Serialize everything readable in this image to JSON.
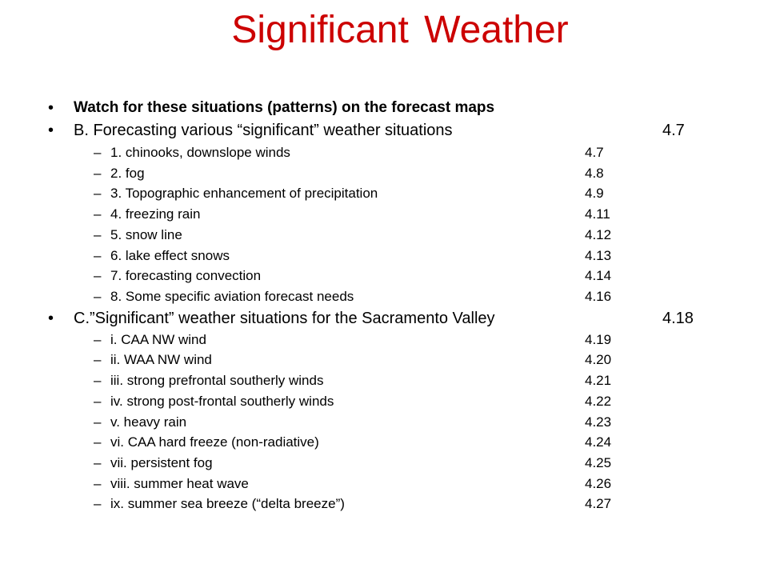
{
  "title": "Significant Weather",
  "bullet_char": "•",
  "dash_char": "–",
  "heading_watch": "Watch for these situations (patterns) on the forecast maps",
  "section_b": {
    "label": "B. Forecasting various “significant” weather situations",
    "page": "4.7",
    "items": [
      {
        "text": "1. chinooks, downslope winds",
        "page": "4.7"
      },
      {
        "text": "2. fog",
        "page": "4.8"
      },
      {
        "text": "3. Topographic enhancement of precipitation",
        "page": "4.9"
      },
      {
        "text": "4. freezing rain",
        "page": "4.11"
      },
      {
        "text": "5. snow line",
        "page": "4.12"
      },
      {
        "text": "6. lake effect snows",
        "page": "4.13"
      },
      {
        "text": "7. forecasting convection",
        "page": "4.14"
      },
      {
        "text": "8. Some specific aviation forecast needs",
        "page": "4.16"
      }
    ]
  },
  "section_c": {
    "label": "C.”Significant” weather situations for the Sacramento Valley",
    "page": "4.18",
    "items": [
      {
        "text": "i. CAA NW wind",
        "page": "4.19"
      },
      {
        "text": "ii. WAA NW wind",
        "page": "4.20"
      },
      {
        "text": "iii. strong prefrontal southerly winds",
        "page": "4.21"
      },
      {
        "text": "iv. strong post-frontal southerly winds",
        "page": "4.22"
      },
      {
        "text": "v. heavy rain",
        "page": "4.23"
      },
      {
        "text": "vi. CAA hard freeze (non-radiative)",
        "page": "4.24"
      },
      {
        "text": "vii. persistent fog",
        "page": "4.25"
      },
      {
        "text": "viii. summer heat wave",
        "page": "4.26"
      },
      {
        "text": "ix. summer sea breeze (“delta breeze”)",
        "page": "4.27"
      }
    ]
  }
}
